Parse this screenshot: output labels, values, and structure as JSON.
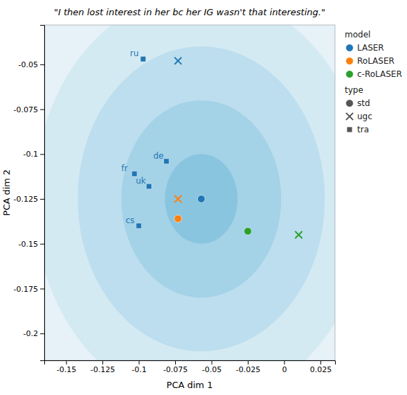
{
  "chart_data": {
    "type": "scatter",
    "title": "\"I then lost interest in her bc her IG wasn't that interesting.\"",
    "x_label": "PCA dim 1",
    "y_label": "PCA dim 2",
    "xlim": [
      -0.165,
      0.035
    ],
    "ylim": [
      -0.215,
      -0.028
    ],
    "xticks": [
      -0.15,
      -0.125,
      -0.1,
      -0.075,
      -0.05,
      -0.025,
      0,
      0.025
    ],
    "yticks": [
      -0.2,
      -0.175,
      -0.15,
      -0.125,
      -0.1,
      -0.075,
      -0.05
    ],
    "legend": "right",
    "series_title": "model",
    "marker_title": "type",
    "marker_types_color": "#555555",
    "marker_types": [
      {
        "name": "std",
        "marker": "circle"
      },
      {
        "name": "ugc",
        "marker": "x"
      },
      {
        "name": "tra",
        "marker": "square"
      }
    ],
    "series": [
      {
        "name": "LASER",
        "color": "#1f77b4",
        "x": [
          -0.057,
          -0.097,
          -0.073,
          -0.081,
          -0.103,
          -0.093,
          -0.1
        ],
        "values": [
          -0.125,
          -0.047,
          -0.048,
          -0.104,
          -0.111,
          -0.118,
          -0.14
        ],
        "types": [
          "std",
          "tra",
          "ugc",
          "tra",
          "tra",
          "tra",
          "tra"
        ],
        "labels": [
          null,
          "ru",
          null,
          "de",
          "fr",
          "uk",
          "cs"
        ]
      },
      {
        "name": "RoLASER",
        "color": "#ff7f0e",
        "x": [
          -0.073,
          -0.073
        ],
        "values": [
          -0.125,
          -0.136
        ],
        "types": [
          "ugc",
          "std"
        ],
        "labels": [
          null,
          null
        ]
      },
      {
        "name": "c-RoLASER",
        "color": "#2ca02c",
        "x": [
          -0.025,
          0.01
        ],
        "values": [
          -0.143,
          -0.145
        ],
        "types": [
          "std",
          "ugc"
        ],
        "labels": [
          null,
          null
        ]
      }
    ],
    "rings": {
      "center": {
        "x": -0.057,
        "y": -0.125
      },
      "radii": [
        0.025,
        0.055,
        0.085,
        0.115,
        0.15,
        0.19
      ],
      "color": "#5bafd6"
    }
  }
}
